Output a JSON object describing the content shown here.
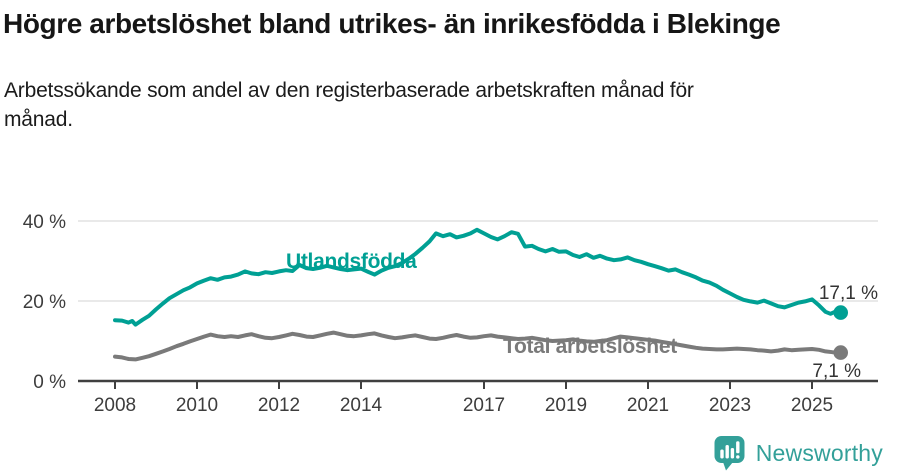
{
  "header": {
    "title": "Högre arbetslöshet bland utrikes- än inrikesfödda i Blekinge",
    "subtitle": "Arbetssökande som andel av den registerbaserade arbetskraften månad för månad."
  },
  "footer": {
    "brand": "Newsworthy"
  },
  "colors": {
    "series_utlandsfodda": "#00a094",
    "series_total": "#7a7a7a",
    "axis": "#404040",
    "grid": "#dcdcdc",
    "tick_label": "#3d3d3d",
    "value_label": "#333333",
    "brand": "#33a099",
    "background": "#ffffff"
  },
  "chart_data": {
    "type": "line",
    "x_unit": "decimal_year",
    "xlim": [
      2007.8,
      2026.2
    ],
    "ylim": [
      0,
      42
    ],
    "grid": "horizontal",
    "legend": "inline-labels",
    "yticks": [
      {
        "v": 0,
        "label": "0 %"
      },
      {
        "v": 20,
        "label": "20 %"
      },
      {
        "v": 40,
        "label": "40 %"
      }
    ],
    "xticks": [
      2008,
      2010,
      2012,
      2014,
      2017,
      2019,
      2021,
      2023,
      2025
    ],
    "series": [
      {
        "id": "utlandsfodda",
        "label": "Utlandsfödda",
        "end_label": "17,1 %",
        "end_value": 17.1,
        "color": "#00a094",
        "points": [
          [
            2008.0,
            15.2
          ],
          [
            2008.17,
            15.1
          ],
          [
            2008.33,
            14.6
          ],
          [
            2008.42,
            15.0
          ],
          [
            2008.5,
            14.1
          ],
          [
            2008.67,
            15.3
          ],
          [
            2008.83,
            16.3
          ],
          [
            2009.0,
            17.9
          ],
          [
            2009.17,
            19.4
          ],
          [
            2009.33,
            20.7
          ],
          [
            2009.5,
            21.7
          ],
          [
            2009.67,
            22.7
          ],
          [
            2009.83,
            23.4
          ],
          [
            2010.0,
            24.4
          ],
          [
            2010.17,
            25.1
          ],
          [
            2010.33,
            25.7
          ],
          [
            2010.5,
            25.3
          ],
          [
            2010.67,
            25.9
          ],
          [
            2010.83,
            26.1
          ],
          [
            2011.0,
            26.6
          ],
          [
            2011.17,
            27.4
          ],
          [
            2011.33,
            26.9
          ],
          [
            2011.5,
            26.7
          ],
          [
            2011.67,
            27.2
          ],
          [
            2011.83,
            27.0
          ],
          [
            2012.0,
            27.4
          ],
          [
            2012.17,
            27.7
          ],
          [
            2012.33,
            27.5
          ],
          [
            2012.5,
            29.0
          ],
          [
            2012.67,
            28.2
          ],
          [
            2012.83,
            28.0
          ],
          [
            2013.0,
            28.3
          ],
          [
            2013.17,
            28.8
          ],
          [
            2013.33,
            28.4
          ],
          [
            2013.5,
            28.0
          ],
          [
            2013.67,
            27.7
          ],
          [
            2013.83,
            27.9
          ],
          [
            2014.0,
            28.1
          ],
          [
            2014.17,
            27.3
          ],
          [
            2014.33,
            26.6
          ],
          [
            2014.5,
            27.6
          ],
          [
            2014.67,
            28.3
          ],
          [
            2014.83,
            28.7
          ],
          [
            2015.0,
            29.5
          ],
          [
            2015.17,
            30.6
          ],
          [
            2015.33,
            31.8
          ],
          [
            2015.5,
            33.3
          ],
          [
            2015.67,
            34.9
          ],
          [
            2015.83,
            36.9
          ],
          [
            2016.0,
            36.2
          ],
          [
            2016.17,
            36.7
          ],
          [
            2016.33,
            35.9
          ],
          [
            2016.5,
            36.3
          ],
          [
            2016.67,
            36.9
          ],
          [
            2016.83,
            37.8
          ],
          [
            2017.0,
            36.9
          ],
          [
            2017.17,
            36.0
          ],
          [
            2017.33,
            35.4
          ],
          [
            2017.5,
            36.2
          ],
          [
            2017.67,
            37.2
          ],
          [
            2017.83,
            36.8
          ],
          [
            2018.0,
            33.6
          ],
          [
            2018.17,
            33.8
          ],
          [
            2018.33,
            33.0
          ],
          [
            2018.5,
            32.4
          ],
          [
            2018.67,
            33.0
          ],
          [
            2018.83,
            32.3
          ],
          [
            2019.0,
            32.4
          ],
          [
            2019.17,
            31.5
          ],
          [
            2019.33,
            31.0
          ],
          [
            2019.5,
            31.7
          ],
          [
            2019.67,
            30.8
          ],
          [
            2019.83,
            31.3
          ],
          [
            2020.0,
            30.6
          ],
          [
            2020.17,
            30.2
          ],
          [
            2020.33,
            30.4
          ],
          [
            2020.5,
            30.9
          ],
          [
            2020.67,
            30.2
          ],
          [
            2020.83,
            29.8
          ],
          [
            2021.0,
            29.2
          ],
          [
            2021.17,
            28.7
          ],
          [
            2021.33,
            28.2
          ],
          [
            2021.5,
            27.6
          ],
          [
            2021.67,
            27.9
          ],
          [
            2021.83,
            27.2
          ],
          [
            2022.0,
            26.6
          ],
          [
            2022.17,
            25.9
          ],
          [
            2022.33,
            25.1
          ],
          [
            2022.5,
            24.6
          ],
          [
            2022.67,
            23.8
          ],
          [
            2022.83,
            22.8
          ],
          [
            2023.0,
            21.9
          ],
          [
            2023.17,
            21.0
          ],
          [
            2023.33,
            20.3
          ],
          [
            2023.5,
            19.9
          ],
          [
            2023.67,
            19.6
          ],
          [
            2023.83,
            20.1
          ],
          [
            2024.0,
            19.4
          ],
          [
            2024.17,
            18.7
          ],
          [
            2024.33,
            18.4
          ],
          [
            2024.5,
            19.0
          ],
          [
            2024.67,
            19.6
          ],
          [
            2024.83,
            19.9
          ],
          [
            2025.0,
            20.4
          ],
          [
            2025.17,
            18.9
          ],
          [
            2025.33,
            17.3
          ],
          [
            2025.45,
            16.8
          ],
          [
            2025.58,
            17.4
          ],
          [
            2025.7,
            17.1
          ]
        ]
      },
      {
        "id": "total",
        "label": "Total arbetslöshet",
        "end_label": "7,1 %",
        "end_value": 7.1,
        "color": "#7a7a7a",
        "points": [
          [
            2008.0,
            6.1
          ],
          [
            2008.17,
            5.9
          ],
          [
            2008.33,
            5.5
          ],
          [
            2008.5,
            5.4
          ],
          [
            2008.67,
            5.8
          ],
          [
            2008.83,
            6.2
          ],
          [
            2009.0,
            6.8
          ],
          [
            2009.17,
            7.4
          ],
          [
            2009.33,
            8.0
          ],
          [
            2009.5,
            8.7
          ],
          [
            2009.67,
            9.3
          ],
          [
            2009.83,
            9.9
          ],
          [
            2010.0,
            10.5
          ],
          [
            2010.17,
            11.1
          ],
          [
            2010.33,
            11.6
          ],
          [
            2010.5,
            11.2
          ],
          [
            2010.67,
            11.0
          ],
          [
            2010.83,
            11.2
          ],
          [
            2011.0,
            11.0
          ],
          [
            2011.17,
            11.4
          ],
          [
            2011.33,
            11.7
          ],
          [
            2011.5,
            11.2
          ],
          [
            2011.67,
            10.8
          ],
          [
            2011.83,
            10.7
          ],
          [
            2012.0,
            11.0
          ],
          [
            2012.17,
            11.4
          ],
          [
            2012.33,
            11.8
          ],
          [
            2012.5,
            11.5
          ],
          [
            2012.67,
            11.1
          ],
          [
            2012.83,
            11.0
          ],
          [
            2013.0,
            11.4
          ],
          [
            2013.17,
            11.8
          ],
          [
            2013.33,
            12.1
          ],
          [
            2013.5,
            11.7
          ],
          [
            2013.67,
            11.3
          ],
          [
            2013.83,
            11.2
          ],
          [
            2014.0,
            11.4
          ],
          [
            2014.17,
            11.7
          ],
          [
            2014.33,
            11.9
          ],
          [
            2014.5,
            11.4
          ],
          [
            2014.67,
            11.0
          ],
          [
            2014.83,
            10.7
          ],
          [
            2015.0,
            10.9
          ],
          [
            2015.17,
            11.2
          ],
          [
            2015.33,
            11.4
          ],
          [
            2015.5,
            11.0
          ],
          [
            2015.67,
            10.6
          ],
          [
            2015.83,
            10.5
          ],
          [
            2016.0,
            10.8
          ],
          [
            2016.17,
            11.2
          ],
          [
            2016.33,
            11.5
          ],
          [
            2016.5,
            11.1
          ],
          [
            2016.67,
            10.8
          ],
          [
            2016.83,
            10.9
          ],
          [
            2017.0,
            11.2
          ],
          [
            2017.17,
            11.4
          ],
          [
            2017.33,
            11.1
          ],
          [
            2017.5,
            10.9
          ],
          [
            2017.67,
            10.7
          ],
          [
            2017.83,
            10.5
          ],
          [
            2018.0,
            10.6
          ],
          [
            2018.17,
            10.8
          ],
          [
            2018.33,
            10.5
          ],
          [
            2018.5,
            10.2
          ],
          [
            2018.67,
            10.0
          ],
          [
            2018.83,
            10.1
          ],
          [
            2019.0,
            10.2
          ],
          [
            2019.17,
            10.4
          ],
          [
            2019.33,
            10.1
          ],
          [
            2019.5,
            9.9
          ],
          [
            2019.67,
            9.8
          ],
          [
            2019.83,
            10.0
          ],
          [
            2020.0,
            10.2
          ],
          [
            2020.17,
            10.7
          ],
          [
            2020.33,
            11.1
          ],
          [
            2020.5,
            10.9
          ],
          [
            2020.67,
            10.7
          ],
          [
            2020.83,
            10.5
          ],
          [
            2021.0,
            10.3
          ],
          [
            2021.17,
            10.1
          ],
          [
            2021.33,
            9.8
          ],
          [
            2021.5,
            9.5
          ],
          [
            2021.67,
            9.2
          ],
          [
            2021.83,
            8.9
          ],
          [
            2022.0,
            8.6
          ],
          [
            2022.17,
            8.3
          ],
          [
            2022.33,
            8.1
          ],
          [
            2022.5,
            8.0
          ],
          [
            2022.67,
            7.9
          ],
          [
            2022.83,
            7.9
          ],
          [
            2023.0,
            8.0
          ],
          [
            2023.17,
            8.1
          ],
          [
            2023.33,
            8.0
          ],
          [
            2023.5,
            7.9
          ],
          [
            2023.67,
            7.7
          ],
          [
            2023.83,
            7.6
          ],
          [
            2024.0,
            7.4
          ],
          [
            2024.17,
            7.6
          ],
          [
            2024.33,
            7.9
          ],
          [
            2024.5,
            7.7
          ],
          [
            2024.67,
            7.8
          ],
          [
            2024.83,
            7.9
          ],
          [
            2025.0,
            8.0
          ],
          [
            2025.17,
            7.8
          ],
          [
            2025.33,
            7.4
          ],
          [
            2025.5,
            7.2
          ],
          [
            2025.7,
            7.1
          ]
        ]
      }
    ]
  }
}
